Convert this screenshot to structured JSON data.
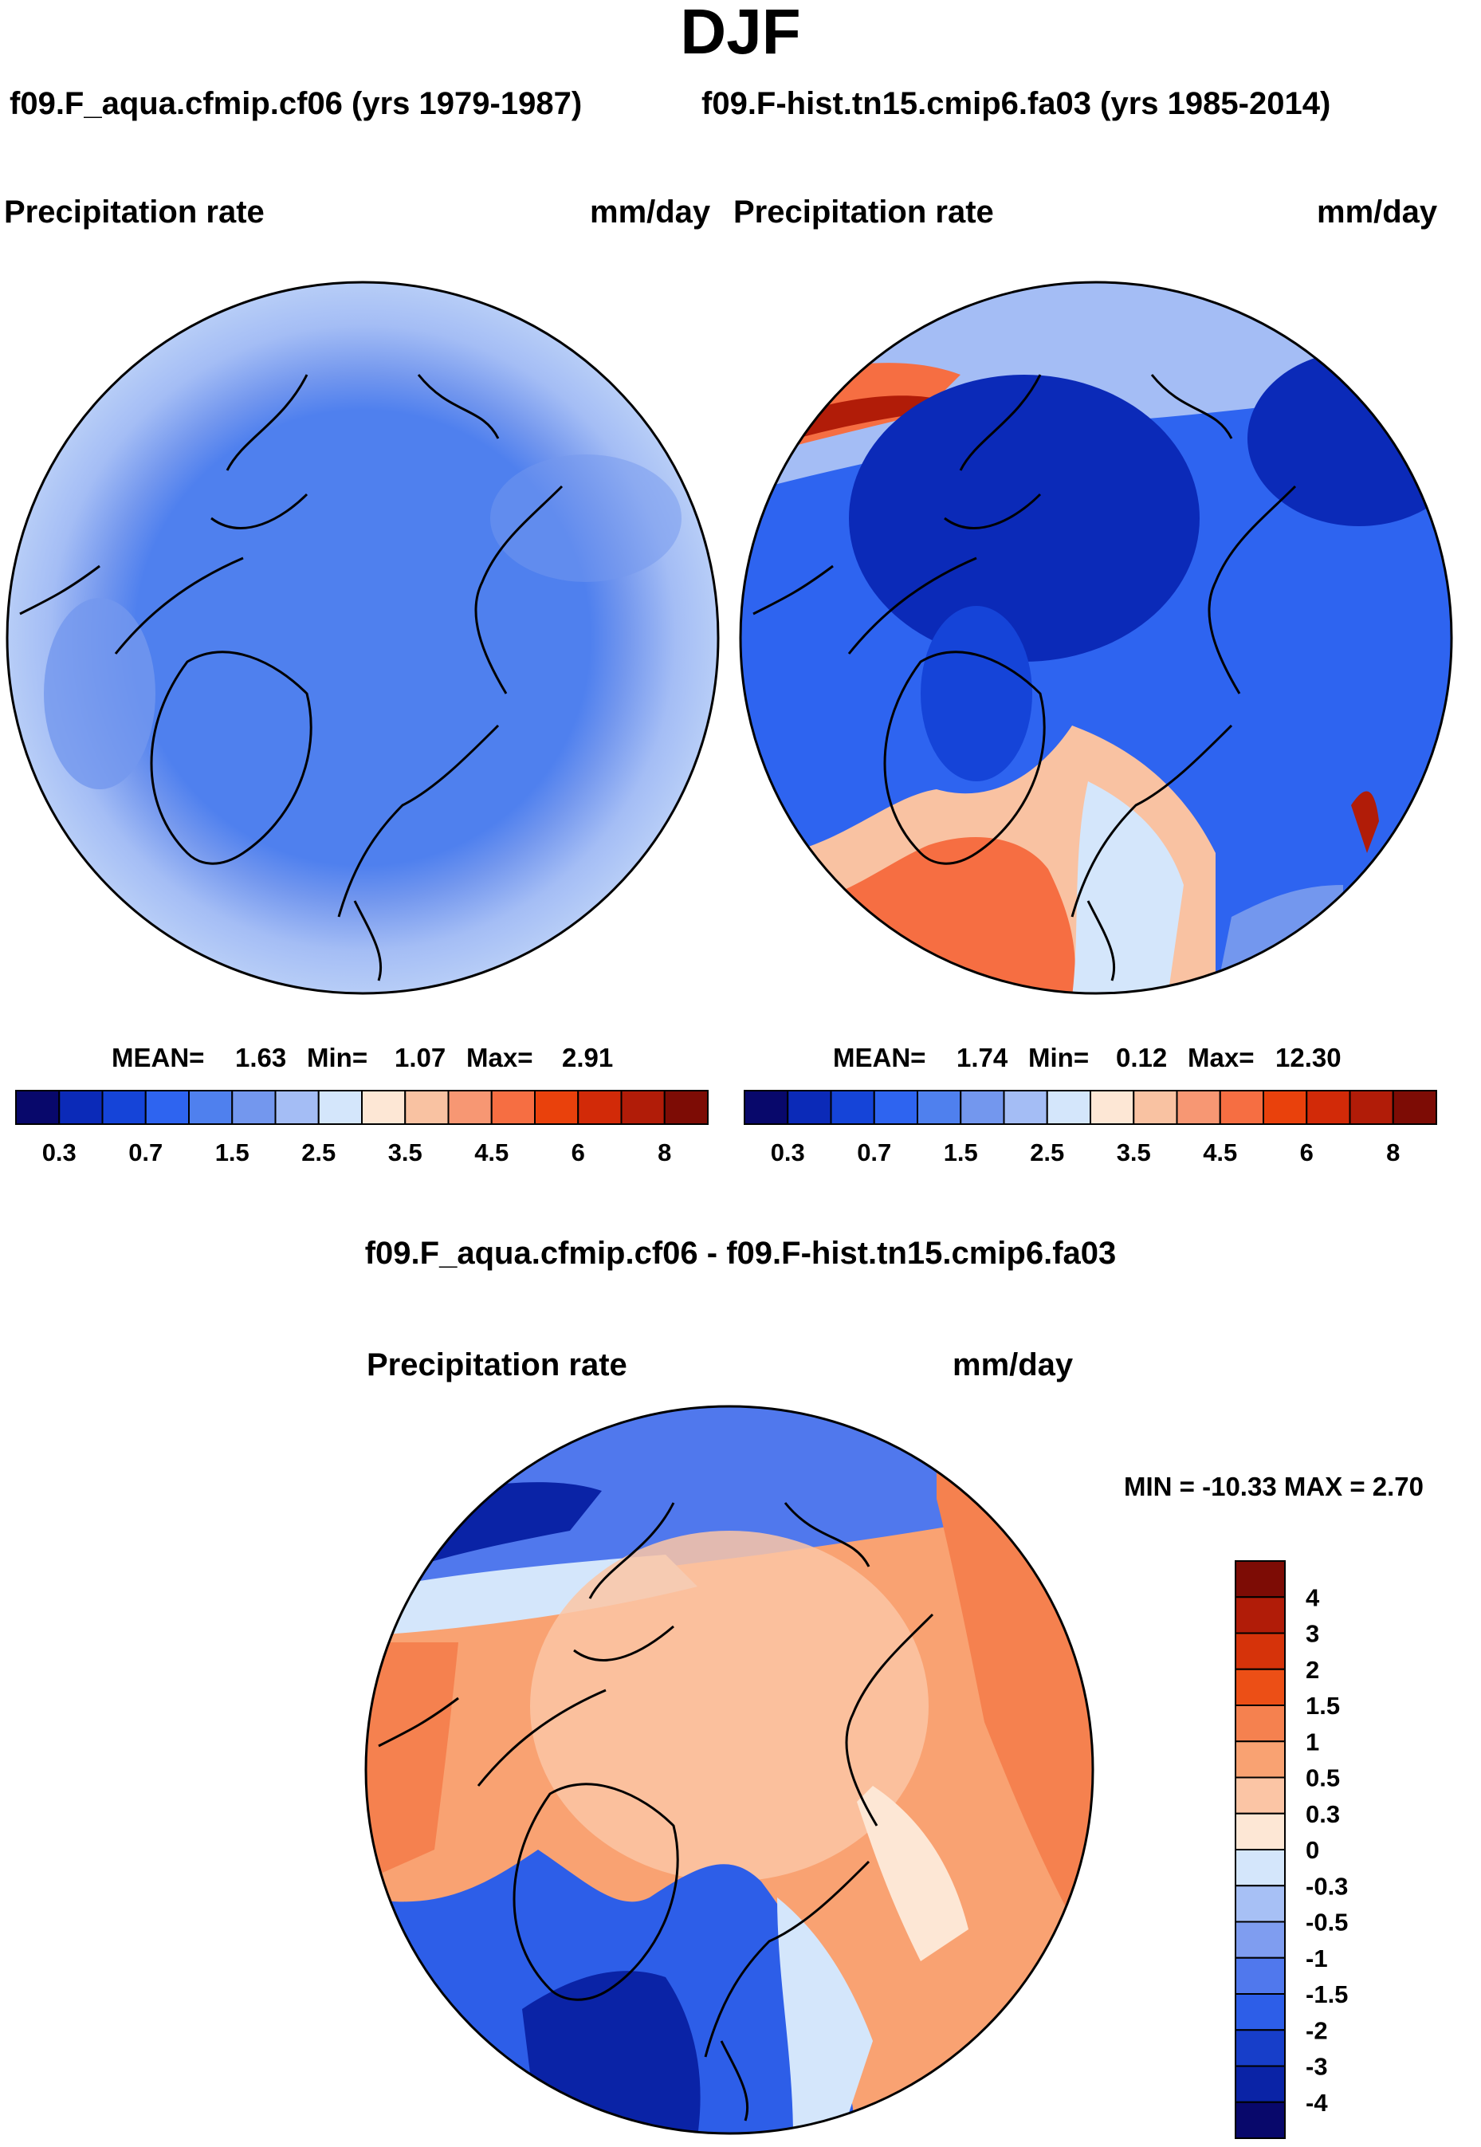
{
  "title": "DJF",
  "chart_data": [
    {
      "type": "heatmap",
      "projection": "north-polar stereographic",
      "case": "f09.F_aqua.cfmip.cf06 (yrs 1979-1987)",
      "left_label": "Precipitation rate",
      "right_label": "mm/day",
      "stats": {
        "mean_label": "MEAN=",
        "mean": "1.63",
        "min_label": "Min=",
        "min": "1.07",
        "max_label": "Max=",
        "max": "2.91"
      },
      "colorbar_levels": [
        0.2,
        0.3,
        0.5,
        0.7,
        1,
        1.5,
        2,
        2.5,
        3,
        3.5,
        4,
        4.5,
        5,
        6,
        7,
        8
      ],
      "colorbar_tick_labels": [
        "0.3",
        "0.7",
        "1.5",
        "2.5",
        "3.5",
        "4.5",
        "6",
        "8"
      ],
      "colorbar_orientation": "horizontal"
    },
    {
      "type": "heatmap",
      "projection": "north-polar stereographic",
      "case": "f09.F-hist.tn15.cmip6.fa03 (yrs 1985-2014)",
      "left_label": "Precipitation rate",
      "right_label": "mm/day",
      "stats": {
        "mean_label": "MEAN=",
        "mean": "1.74",
        "min_label": "Min=",
        "min": "0.12",
        "max_label": "Max=",
        "max": "12.30"
      },
      "colorbar_levels": [
        0.2,
        0.3,
        0.5,
        0.7,
        1,
        1.5,
        2,
        2.5,
        3,
        3.5,
        4,
        4.5,
        5,
        6,
        7,
        8
      ],
      "colorbar_tick_labels": [
        "0.3",
        "0.7",
        "1.5",
        "2.5",
        "3.5",
        "4.5",
        "6",
        "8"
      ],
      "colorbar_orientation": "horizontal"
    },
    {
      "type": "heatmap",
      "projection": "north-polar stereographic",
      "case": "f09.F_aqua.cfmip.cf06 - f09.F-hist.tn15.cmip6.fa03",
      "left_label": "Precipitation rate",
      "right_label": "mm/day",
      "stats": {
        "text": "MIN = -10.33 MAX =   2.70",
        "min": -10.33,
        "max": 2.7
      },
      "colorbar_levels": [
        -4,
        -3,
        -2,
        -1.5,
        -1,
        -0.5,
        -0.3,
        0,
        0.3,
        0.5,
        1,
        1.5,
        2,
        3,
        4
      ],
      "colorbar_tick_labels": [
        "4",
        "3",
        "2",
        "1.5",
        "1",
        "0.5",
        "0.3",
        "0",
        "-0.3",
        "-0.5",
        "-1",
        "-1.5",
        "-2",
        "-3",
        "-4"
      ],
      "colorbar_orientation": "vertical"
    }
  ],
  "colors": {
    "seq": [
      "#08086b",
      "#0b2ab8",
      "#1544d8",
      "#2e64f0",
      "#4f80ee",
      "#7397ee",
      "#a4bdf5",
      "#d4e6fb",
      "#fde7d5",
      "#f9c2a2",
      "#f79773",
      "#f66e42",
      "#e9410c",
      "#d22a08",
      "#b11c08",
      "#7d0c05"
    ],
    "div": [
      "#7d0c05",
      "#b11c08",
      "#d6330a",
      "#ec4f16",
      "#f5814f",
      "#f9a272",
      "#fbc5a5",
      "#fde7d5",
      "#d4e6fb",
      "#a7c0f5",
      "#7f9df0",
      "#5078ed",
      "#2d5ee8",
      "#173ec9",
      "#0a23a6",
      "#08086b"
    ]
  }
}
